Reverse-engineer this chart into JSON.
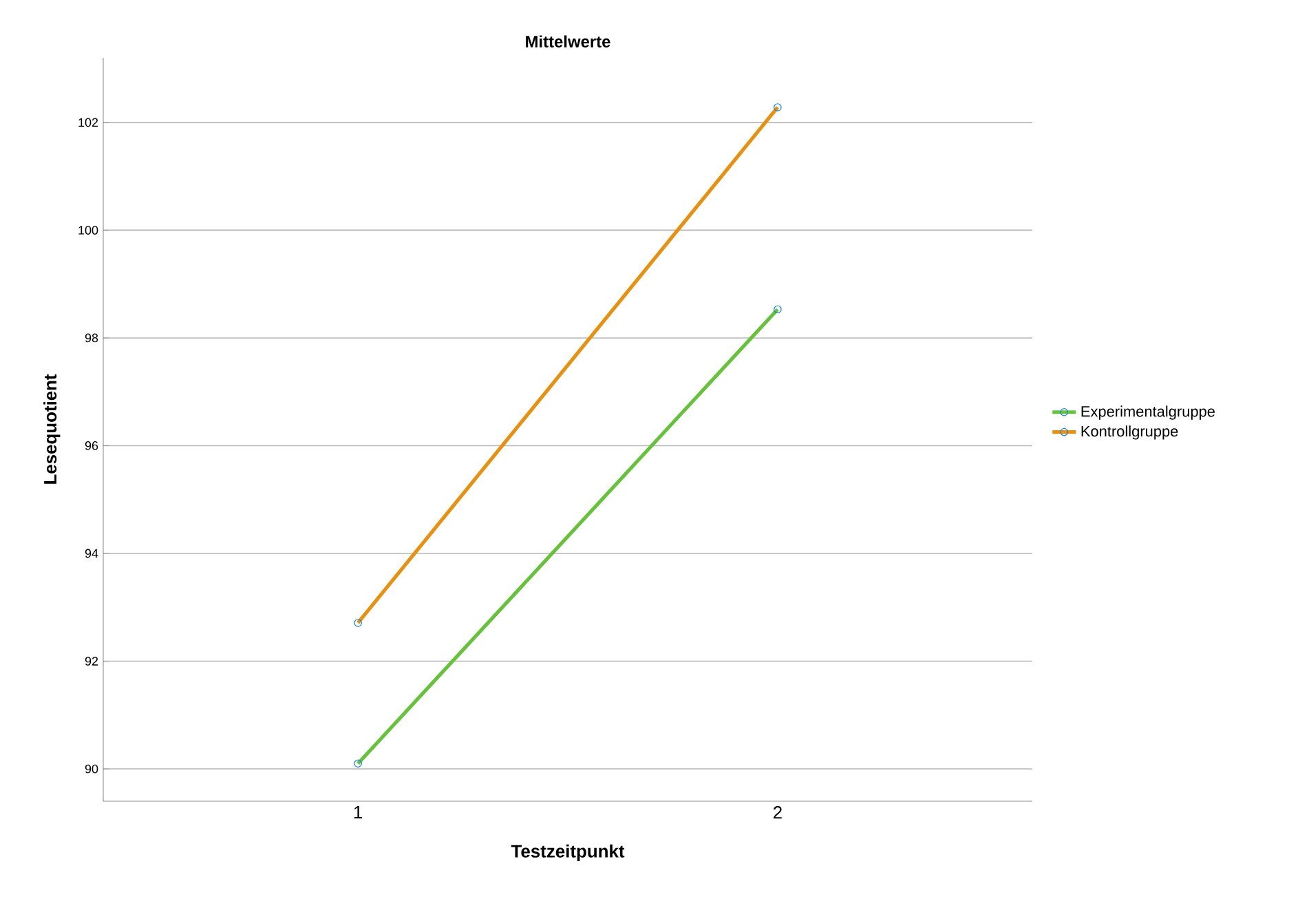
{
  "chart_data": {
    "type": "line",
    "title": "Mittelwerte",
    "xlabel": "Testzeitpunkt",
    "ylabel": "Lesequotient",
    "categories": [
      "1",
      "2"
    ],
    "series": [
      {
        "name": "Experimentalgruppe",
        "color": "#66c23a",
        "values": [
          90.1,
          98.53
        ]
      },
      {
        "name": "Kontrollgruppe",
        "color": "#e8900f",
        "values": [
          92.71,
          102.28
        ]
      }
    ],
    "ylim": [
      89.4,
      103.2
    ],
    "yticks": [
      90,
      92,
      94,
      96,
      98,
      100,
      102
    ],
    "grid": "y",
    "legend": "right",
    "marker": "circle",
    "line_style": "solid"
  }
}
